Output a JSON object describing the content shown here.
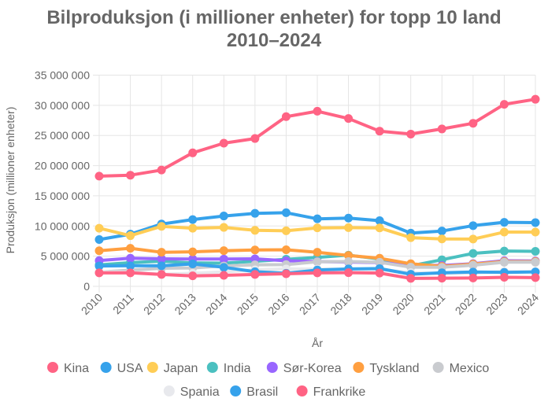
{
  "chart_data": {
    "type": "line",
    "title": [
      "Bilproduksjon (i millioner enheter) for topp 10 land",
      "2010–2024"
    ],
    "xlabel": "År",
    "ylabel": "Produksjon (millioner enheter)",
    "x": [
      "2010",
      "2011",
      "2012",
      "2013",
      "2014",
      "2015",
      "2016",
      "2017",
      "2018",
      "2019",
      "2020",
      "2021",
      "2022",
      "2023",
      "2024"
    ],
    "ylim": [
      0,
      35000000
    ],
    "yticks": [
      0,
      5000000,
      10000000,
      15000000,
      20000000,
      25000000,
      30000000,
      35000000
    ],
    "ytick_labels": [
      "0",
      "5 000 000",
      "10 000 000",
      "15 000 000",
      "20 000 000",
      "25 000 000",
      "30 000 000",
      "35 000 000"
    ],
    "grid": true,
    "legend_position": "bottom",
    "series": [
      {
        "name": "Kina",
        "color": "#ff6384",
        "values": [
          18260000,
          18420000,
          19270000,
          22120000,
          23720000,
          24500000,
          28120000,
          29020000,
          27810000,
          25720000,
          25230000,
          26080000,
          27020000,
          30160000,
          31000000
        ]
      },
      {
        "name": "USA",
        "color": "#36a2eb",
        "values": [
          7760000,
          8650000,
          10330000,
          11070000,
          11660000,
          12100000,
          12200000,
          11190000,
          11310000,
          10880000,
          8820000,
          9170000,
          10060000,
          10610000,
          10560000
        ]
      },
      {
        "name": "Japan",
        "color": "#ffcd56",
        "values": [
          9630000,
          8400000,
          9940000,
          9630000,
          9770000,
          9280000,
          9200000,
          9690000,
          9730000,
          9680000,
          8070000,
          7850000,
          7840000,
          8990000,
          9000000
        ]
      },
      {
        "name": "India",
        "color": "#4bc0c0",
        "values": [
          3560000,
          3930000,
          4170000,
          3880000,
          3840000,
          4160000,
          4490000,
          4780000,
          5170000,
          4520000,
          3390000,
          4400000,
          5460000,
          5850000,
          5800000
        ]
      },
      {
        "name": "Sør-Korea",
        "color": "#9966ff",
        "values": [
          4270000,
          4660000,
          4560000,
          4520000,
          4520000,
          4560000,
          4230000,
          4110000,
          4030000,
          3950000,
          3510000,
          3460000,
          3760000,
          4240000,
          4200000
        ]
      },
      {
        "name": "Tyskland",
        "color": "#ff9f40",
        "values": [
          5900000,
          6310000,
          5650000,
          5720000,
          5910000,
          6030000,
          6060000,
          5650000,
          5120000,
          4660000,
          3740000,
          3310000,
          3680000,
          4100000,
          4100000
        ]
      },
      {
        "name": "Mexico",
        "color": "#c9cbcf",
        "values": [
          2340000,
          2680000,
          3000000,
          3050000,
          3370000,
          3570000,
          3600000,
          4070000,
          4100000,
          3990000,
          3180000,
          3150000,
          3500000,
          4000000,
          4000000
        ]
      },
      {
        "name": "Spania",
        "color": "#e8e9ed",
        "values": [
          2390000,
          2350000,
          1980000,
          2160000,
          2400000,
          2730000,
          2890000,
          2850000,
          2820000,
          2820000,
          2270000,
          2100000,
          2220000,
          2450000,
          2400000
        ]
      },
      {
        "name": "Brasil",
        "color": "#36a2eb",
        "values": [
          3380000,
          3410000,
          3400000,
          3710000,
          3150000,
          2430000,
          2160000,
          2700000,
          2880000,
          2940000,
          2010000,
          2250000,
          2370000,
          2320000,
          2400000
        ]
      },
      {
        "name": "Frankrike",
        "color": "#ff6384",
        "values": [
          2230000,
          2240000,
          1970000,
          1740000,
          1820000,
          1970000,
          2080000,
          2230000,
          2270000,
          2200000,
          1320000,
          1350000,
          1380000,
          1500000,
          1450000
        ]
      }
    ]
  }
}
